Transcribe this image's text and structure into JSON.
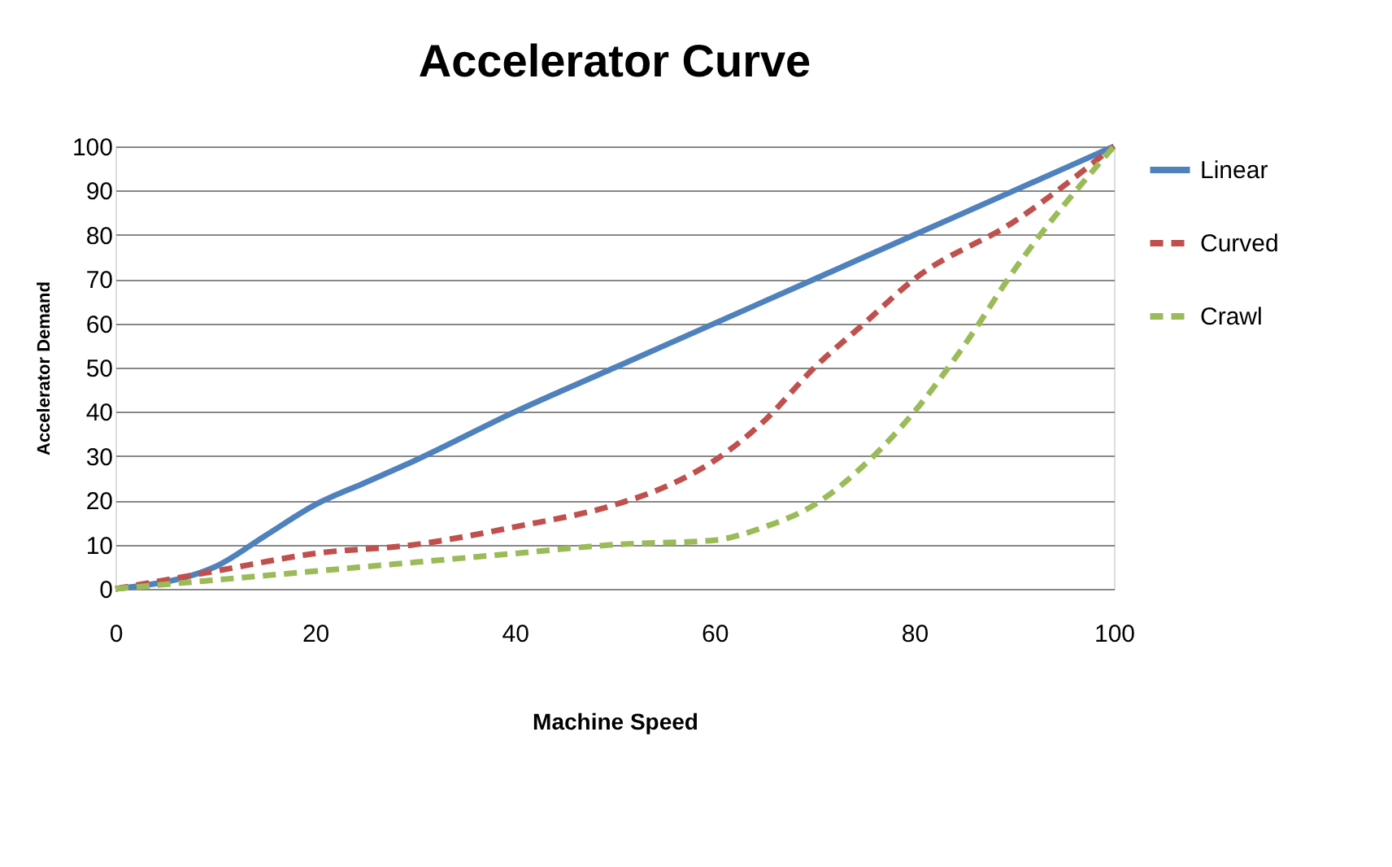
{
  "chart_data": {
    "type": "line",
    "title": "Accelerator Curve",
    "xlabel": "Machine Speed",
    "ylabel": "Accelerator Demand",
    "xlim": [
      0,
      100
    ],
    "xticks": [
      0,
      20,
      40,
      60,
      80,
      100
    ],
    "ylim": [
      0,
      100
    ],
    "yticks": [
      0,
      10,
      20,
      30,
      40,
      50,
      60,
      70,
      80,
      90,
      100
    ],
    "grid": "y",
    "legend": "right",
    "marker": "none",
    "series": [
      {
        "name": "Linear",
        "color": "#4f81bd",
        "line_style": "solid",
        "x": [
          0,
          10,
          15,
          20,
          25,
          30,
          40,
          50,
          60,
          70,
          80,
          90,
          100
        ],
        "values": [
          0,
          5,
          12,
          19,
          24,
          29,
          40,
          50,
          60,
          70,
          80,
          90,
          100
        ]
      },
      {
        "name": "Curved",
        "color": "#c0504d",
        "line_style": "dashed",
        "x": [
          0,
          10,
          20,
          30,
          40,
          50,
          55,
          60,
          65,
          70,
          75,
          80,
          90,
          100
        ],
        "values": [
          0,
          4,
          8,
          10,
          14,
          19,
          23,
          29,
          38,
          50,
          60,
          70,
          83,
          100
        ]
      },
      {
        "name": "Crawl",
        "color": "#9bbb59",
        "line_style": "dashed",
        "x": [
          0,
          10,
          20,
          30,
          40,
          50,
          60,
          65,
          70,
          75,
          80,
          85,
          90,
          100
        ],
        "values": [
          0,
          2,
          4,
          6,
          8,
          10,
          11,
          14,
          19,
          28,
          40,
          55,
          72,
          100
        ]
      }
    ]
  }
}
